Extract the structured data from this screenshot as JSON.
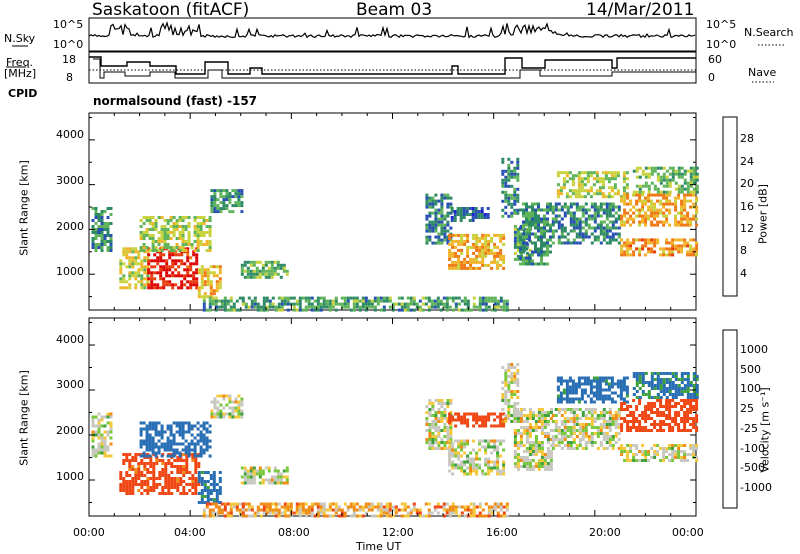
{
  "header": {
    "station": "Saskatoon (fitACF)",
    "beam": "Beam 03",
    "date": "14/Mar/2011"
  },
  "strip_labels": {
    "nsky": "N.Sky",
    "nsearch": "N.Search",
    "freq_line1": "Freq.",
    "freq_line2": "[MHz]",
    "nave": "Nave",
    "cpid": "CPID",
    "cpid_value": "normalsound (fast) -157"
  },
  "strip_ticks": {
    "noise_left": [
      "10^5",
      "10^0"
    ],
    "noise_right": [
      "10^5",
      "10^0"
    ],
    "freq_left": [
      "18",
      "8"
    ],
    "nave_right": [
      "60",
      "0"
    ]
  },
  "colors": {
    "power_scale": [
      "#1f1fdc",
      "#2850b4",
      "#2e8a64",
      "#5fb45a",
      "#c8d23c",
      "#f0b428",
      "#f07814",
      "#e83c0a",
      "#dc0000"
    ],
    "velocity_scale": [
      "#dc0000",
      "#f04614",
      "#f08c14",
      "#f5c83c",
      "#c8c8c0",
      "#c8c8c0",
      "#78c83c",
      "#3ca03c",
      "#286eb4",
      "#1e3cc8"
    ]
  },
  "chart_data": [
    {
      "type": "heatmap",
      "title": "",
      "ylabel": "Slant Range [km]",
      "x": [
        "00:00",
        "04:00",
        "08:00",
        "12:00",
        "16:00",
        "20:00",
        "00:00"
      ],
      "y_ticks": [
        "1000",
        "2000",
        "3000",
        "4000"
      ],
      "ylim": [
        200,
        4600
      ],
      "colorbar": {
        "label": "Power [dB]",
        "ticks": [
          "4",
          "8",
          "12",
          "16",
          "20",
          "24",
          "28"
        ],
        "range": [
          0,
          30
        ]
      },
      "echo_regions": [
        {
          "t0": 0.1,
          "t1": 0.9,
          "r0": 1500,
          "r1": 2500,
          "level": 9
        },
        {
          "t0": 1.2,
          "t1": 2.3,
          "r0": 700,
          "r1": 1600,
          "level": 16
        },
        {
          "t0": 2.3,
          "t1": 4.3,
          "r0": 700,
          "r1": 1600,
          "level": 27
        },
        {
          "t0": 2.0,
          "t1": 4.8,
          "r0": 1500,
          "r1": 2300,
          "level": 14
        },
        {
          "t0": 4.3,
          "t1": 5.2,
          "r0": 500,
          "r1": 1200,
          "level": 18
        },
        {
          "t0": 4.8,
          "t1": 6.0,
          "r0": 2400,
          "r1": 2900,
          "level": 9
        },
        {
          "t0": 6.0,
          "t1": 7.8,
          "r0": 900,
          "r1": 1300,
          "level": 11
        },
        {
          "t0": 4.5,
          "t1": 16.5,
          "r0": 200,
          "r1": 500,
          "level": 10
        },
        {
          "t0": 13.3,
          "t1": 14.3,
          "r0": 1700,
          "r1": 2800,
          "level": 8
        },
        {
          "t0": 14.2,
          "t1": 16.4,
          "r0": 1100,
          "r1": 1900,
          "level": 19
        },
        {
          "t0": 14.3,
          "t1": 15.8,
          "r0": 2200,
          "r1": 2500,
          "level": 6
        },
        {
          "t0": 16.3,
          "t1": 16.9,
          "r0": 2300,
          "r1": 3600,
          "level": 8
        },
        {
          "t0": 16.8,
          "t1": 17.4,
          "r0": 1300,
          "r1": 2100,
          "level": 10
        },
        {
          "t0": 17.0,
          "t1": 18.3,
          "r0": 1200,
          "r1": 2600,
          "level": 9
        },
        {
          "t0": 18.3,
          "t1": 21.0,
          "r0": 1700,
          "r1": 2600,
          "level": 8
        },
        {
          "t0": 18.5,
          "t1": 21.3,
          "r0": 2700,
          "r1": 3300,
          "level": 14
        },
        {
          "t0": 21.0,
          "t1": 24.0,
          "r0": 1400,
          "r1": 1800,
          "level": 20
        },
        {
          "t0": 21.0,
          "t1": 24.0,
          "r0": 2100,
          "r1": 2800,
          "level": 19
        },
        {
          "t0": 21.5,
          "t1": 24.0,
          "r0": 2800,
          "r1": 3400,
          "level": 12
        }
      ]
    },
    {
      "type": "heatmap",
      "title": "",
      "ylabel": "Slant Range [km]",
      "xlabel": "Time UT",
      "x": [
        "00:00",
        "04:00",
        "08:00",
        "12:00",
        "16:00",
        "20:00",
        "00:00"
      ],
      "y_ticks": [
        "1000",
        "2000",
        "3000",
        "4000"
      ],
      "ylim": [
        200,
        4600
      ],
      "colorbar": {
        "label": "Velocity [m s⁻¹]",
        "ticks": [
          "1000",
          "500",
          "100",
          "25",
          "-25",
          "-100",
          "-500",
          "-1000"
        ],
        "range": [
          -1000,
          1000
        ]
      },
      "echo_regions": [
        {
          "t0": 0.1,
          "t1": 0.9,
          "r0": 1500,
          "r1": 2500,
          "level": 0
        },
        {
          "t0": 1.2,
          "t1": 4.3,
          "r0": 700,
          "r1": 1600,
          "level": -150
        },
        {
          "t0": 2.0,
          "t1": 4.8,
          "r0": 1500,
          "r1": 2300,
          "level": 200
        },
        {
          "t0": 4.3,
          "t1": 5.2,
          "r0": 500,
          "r1": 1200,
          "level": 150
        },
        {
          "t0": 4.8,
          "t1": 6.0,
          "r0": 2400,
          "r1": 2900,
          "level": 0
        },
        {
          "t0": 6.0,
          "t1": 7.8,
          "r0": 900,
          "r1": 1300,
          "level": 0
        },
        {
          "t0": 4.5,
          "t1": 16.5,
          "r0": 200,
          "r1": 500,
          "level": -60
        },
        {
          "t0": 13.3,
          "t1": 14.3,
          "r0": 1700,
          "r1": 2800,
          "level": 0
        },
        {
          "t0": 14.2,
          "t1": 16.4,
          "r0": 2200,
          "r1": 2500,
          "level": -200
        },
        {
          "t0": 14.2,
          "t1": 16.4,
          "r0": 1100,
          "r1": 1900,
          "level": 0
        },
        {
          "t0": 16.3,
          "t1": 16.9,
          "r0": 2300,
          "r1": 3600,
          "level": 0
        },
        {
          "t0": 16.8,
          "t1": 18.3,
          "r0": 1200,
          "r1": 2600,
          "level": 0
        },
        {
          "t0": 18.3,
          "t1": 21.0,
          "r0": 1700,
          "r1": 2600,
          "level": 0
        },
        {
          "t0": 18.5,
          "t1": 21.3,
          "r0": 2700,
          "r1": 3300,
          "level": 150
        },
        {
          "t0": 21.0,
          "t1": 24.0,
          "r0": 1400,
          "r1": 1800,
          "level": 0
        },
        {
          "t0": 21.0,
          "t1": 24.0,
          "r0": 2100,
          "r1": 2800,
          "level": -300
        },
        {
          "t0": 21.5,
          "t1": 24.0,
          "r0": 2800,
          "r1": 3400,
          "level": 120
        }
      ]
    }
  ]
}
